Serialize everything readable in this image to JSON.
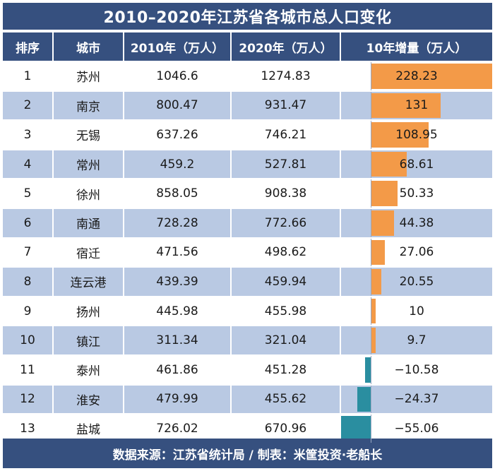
{
  "title": "2010–2020年江苏省各城市总人口变化",
  "columns": [
    "排序",
    "城市",
    "2010年（万人）",
    "2020年（万人）",
    "10年增量（万人）"
  ],
  "rows": [
    {
      "rank": "1",
      "city": "苏州",
      "y2010": "1046.6",
      "y2020": "1274.83",
      "increase": "228.23"
    },
    {
      "rank": "2",
      "city": "南京",
      "y2010": "800.47",
      "y2020": "931.47",
      "increase": "131"
    },
    {
      "rank": "3",
      "city": "无锡",
      "y2010": "637.26",
      "y2020": "746.21",
      "increase": "108.95"
    },
    {
      "rank": "4",
      "city": "常州",
      "y2010": "459.2",
      "y2020": "527.81",
      "increase": "68.61"
    },
    {
      "rank": "5",
      "city": "徐州",
      "y2010": "858.05",
      "y2020": "908.38",
      "increase": "50.33"
    },
    {
      "rank": "6",
      "city": "南通",
      "y2010": "728.28",
      "y2020": "772.66",
      "increase": "44.38"
    },
    {
      "rank": "7",
      "city": "宿迁",
      "y2010": "471.56",
      "y2020": "498.62",
      "increase": "27.06"
    },
    {
      "rank": "8",
      "city": "连云港",
      "y2010": "439.39",
      "y2020": "459.94",
      "increase": "20.55"
    },
    {
      "rank": "9",
      "city": "扬州",
      "y2010": "445.98",
      "y2020": "455.98",
      "increase": "10"
    },
    {
      "rank": "10",
      "city": "镇江",
      "y2010": "311.34",
      "y2020": "321.04",
      "increase": "9.7"
    },
    {
      "rank": "11",
      "city": "泰州",
      "y2010": "461.86",
      "y2020": "451.28",
      "increase": "−10.58"
    },
    {
      "rank": "12",
      "city": "淮安",
      "y2010": "479.99",
      "y2020": "455.62",
      "increase": "−24.37"
    },
    {
      "rank": "13",
      "city": "盐城",
      "y2010": "726.02",
      "y2020": "670.96",
      "increase": "−55.06"
    }
  ],
  "footer": "数据来源：江苏省统计局 / 制表：米筐投资·老船长",
  "colors": {
    "header_bg": "#36507f",
    "stripe": "#b9c9e3",
    "positive_bar": "#f39a48",
    "negative_bar": "#2a8ea0"
  },
  "chart_data": {
    "type": "table",
    "title": "2010–2020年江苏省各城市总人口变化",
    "columns": [
      "排序",
      "城市",
      "2010年（万人）",
      "2020年（万人）",
      "10年增量（万人）"
    ],
    "categories": [
      "苏州",
      "南京",
      "无锡",
      "常州",
      "徐州",
      "南通",
      "宿迁",
      "连云港",
      "扬州",
      "镇江",
      "泰州",
      "淮安",
      "盐城"
    ],
    "series": [
      {
        "name": "2010年（万人）",
        "values": [
          1046.6,
          800.47,
          637.26,
          459.2,
          858.05,
          728.28,
          471.56,
          439.39,
          445.98,
          311.34,
          461.86,
          479.99,
          726.02
        ]
      },
      {
        "name": "2020年（万人）",
        "values": [
          1274.83,
          931.47,
          746.21,
          527.81,
          908.38,
          772.66,
          498.62,
          459.94,
          455.98,
          321.04,
          451.28,
          455.62,
          670.96
        ]
      },
      {
        "name": "10年增量（万人）",
        "values": [
          228.23,
          131,
          108.95,
          68.61,
          50.33,
          44.38,
          27.06,
          20.55,
          10,
          9.7,
          -10.58,
          -24.37,
          -55.06
        ]
      }
    ],
    "bar_range": [
      -55.06,
      228.23
    ]
  }
}
